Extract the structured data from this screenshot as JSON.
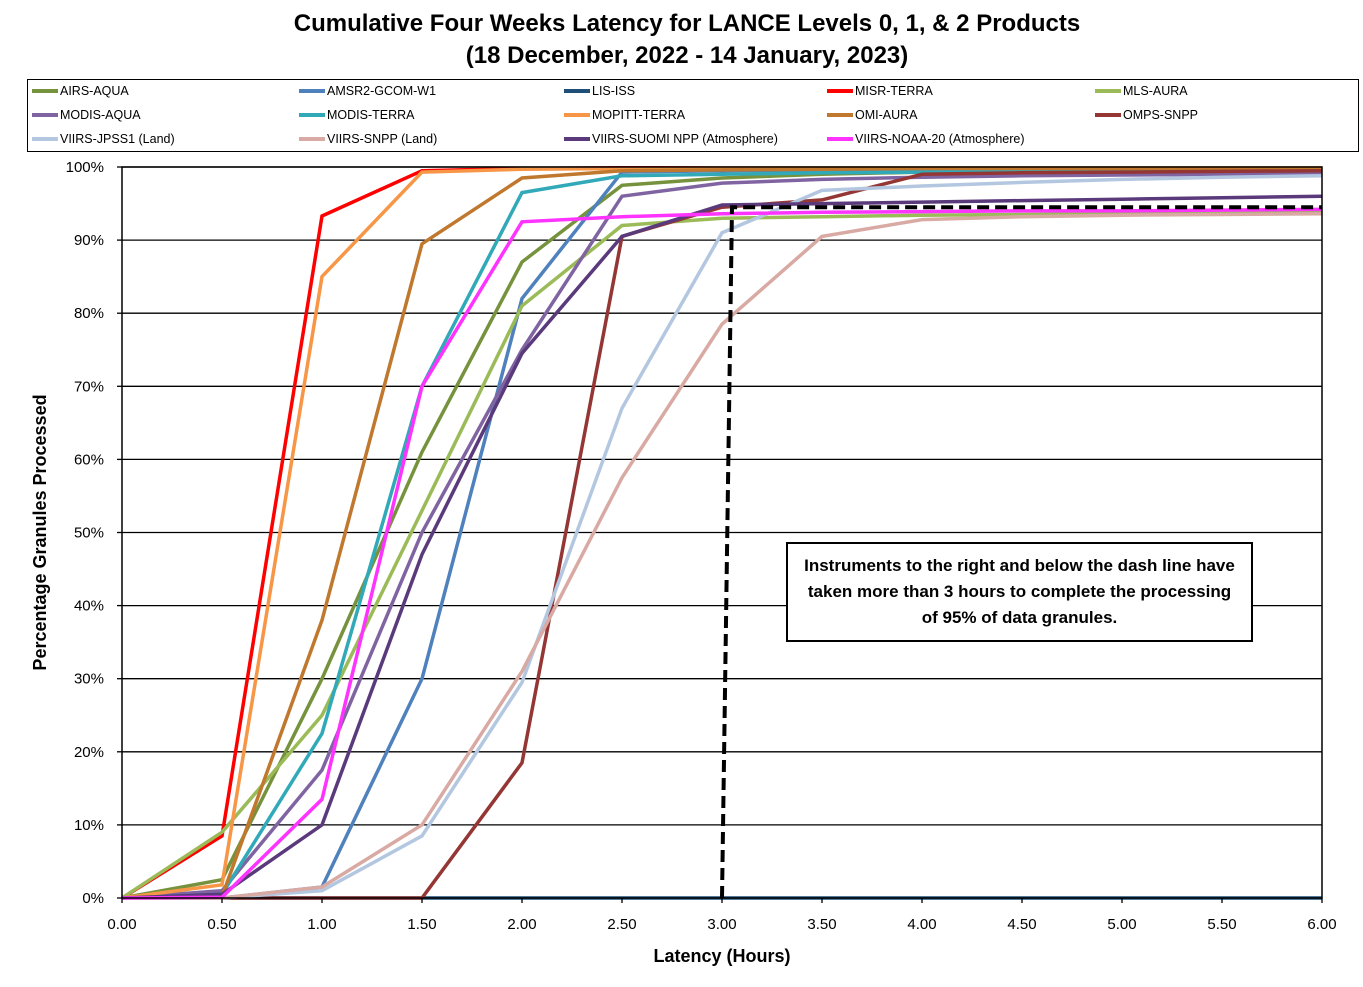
{
  "chart_data": {
    "type": "line",
    "title": "Cumulative Four Weeks Latency  for LANCE Levels 0, 1, & 2 Products",
    "subtitle": "(18 December, 2022  -  14 January, 2023)",
    "xlabel": "Latency (Hours)",
    "ylabel": "Percentage Granules Processed",
    "xlim": [
      0,
      6
    ],
    "ylim": [
      0,
      100
    ],
    "x_ticks": [
      "0.00",
      "0.50",
      "1.00",
      "1.50",
      "2.00",
      "2.50",
      "3.00",
      "3.50",
      "4.00",
      "4.50",
      "5.00",
      "5.50",
      "6.00"
    ],
    "y_ticks": [
      "0%",
      "10%",
      "20%",
      "30%",
      "40%",
      "50%",
      "60%",
      "70%",
      "80%",
      "90%",
      "100%"
    ],
    "grid": "horizontal",
    "legend_position": "top",
    "x": [
      0,
      0.5,
      1.0,
      1.5,
      2.0,
      2.5,
      3.0,
      3.5,
      4.0,
      4.5,
      5.0,
      5.5,
      6.0
    ],
    "series": [
      {
        "name": "AIRS-AQUA",
        "color": "#76923C",
        "values": [
          0,
          2.5,
          30,
          61,
          87,
          97.5,
          98.5,
          99,
          99.3,
          99.5,
          99.6,
          99.7,
          99.8
        ]
      },
      {
        "name": "AMSR2-GCOM-W1",
        "color": "#4F81BD",
        "values": [
          0,
          0,
          1.5,
          30,
          82,
          99.3,
          99.5,
          99.6,
          99.7,
          99.8,
          99.8,
          99.9,
          99.9
        ]
      },
      {
        "name": "LIS-ISS",
        "color": "#1F4E79",
        "values": [
          0,
          0,
          0,
          0,
          0,
          0,
          0,
          0,
          0,
          0,
          0,
          0,
          0
        ]
      },
      {
        "name": "MISR-TERRA",
        "color": "#FF0000",
        "values": [
          0,
          8.5,
          93.3,
          99.5,
          99.8,
          99.9,
          99.9,
          99.9,
          99.9,
          99.9,
          99.9,
          99.9,
          99.9
        ]
      },
      {
        "name": "MLS-AURA",
        "color": "#9BBB59",
        "values": [
          0,
          9,
          25,
          53,
          81,
          92,
          93,
          93.2,
          93.4,
          93.5,
          93.6,
          93.7,
          93.8
        ]
      },
      {
        "name": "MODIS-AQUA",
        "color": "#8064A2",
        "values": [
          0,
          1,
          17.5,
          50,
          75,
          96,
          97.8,
          98.3,
          98.6,
          98.8,
          98.9,
          99,
          99.1
        ]
      },
      {
        "name": "MODIS-TERRA",
        "color": "#31A9B8",
        "values": [
          0,
          0.5,
          22.5,
          70,
          96.5,
          98.8,
          99,
          99.2,
          99.3,
          99.4,
          99.5,
          99.6,
          99.7
        ]
      },
      {
        "name": "MOPITT-TERRA",
        "color": "#F79646",
        "values": [
          0,
          1.8,
          85,
          99.3,
          99.7,
          99.8,
          99.9,
          99.9,
          99.9,
          99.9,
          99.9,
          99.9,
          99.9
        ]
      },
      {
        "name": "OMI-AURA",
        "color": "#C0782E",
        "values": [
          0,
          0.2,
          38,
          89.5,
          98.5,
          99.5,
          99.6,
          99.7,
          99.8,
          99.8,
          99.8,
          99.8,
          99.8
        ]
      },
      {
        "name": "OMPS-SNPP",
        "color": "#943634",
        "values": [
          0,
          0,
          0,
          0,
          18.5,
          90.5,
          94.5,
          95.5,
          99,
          99.2,
          99.3,
          99.4,
          99.5
        ]
      },
      {
        "name": "VIIRS-JPSS1 (Land)",
        "color": "#B3C7E1",
        "values": [
          0,
          0,
          1,
          8.5,
          29.5,
          67,
          91,
          96.8,
          97.4,
          97.9,
          98.3,
          98.6,
          98.8
        ]
      },
      {
        "name": "VIIRS-SNPP (Land)",
        "color": "#D9A9A3",
        "values": [
          0,
          0,
          1.5,
          10,
          31,
          57.5,
          78.5,
          90.5,
          92.8,
          93.2,
          93.4,
          93.5,
          93.6
        ]
      },
      {
        "name": "VIIRS-SUOMI NPP (Atmosphere)",
        "color": "#5B3A7C",
        "values": [
          0,
          0.5,
          10,
          47,
          74.5,
          90.5,
          94.8,
          95,
          95.2,
          95.4,
          95.6,
          95.8,
          96
        ]
      },
      {
        "name": "VIIRS-NOAA-20 (Atmosphere)",
        "color": "#FF33FF",
        "values": [
          0,
          0.1,
          13.5,
          70,
          92.5,
          93.2,
          93.6,
          93.8,
          93.9,
          94,
          94,
          94.1,
          94.2
        ]
      }
    ],
    "threshold_line": {
      "x": [
        3.0,
        3.05,
        6.0
      ],
      "y": [
        0,
        94.5,
        94.5
      ],
      "style": "dashed",
      "color": "#000000"
    },
    "annotation": "Instruments to the right and below the dash line have taken more than 3 hours to complete the processing of 95% of data granules."
  }
}
